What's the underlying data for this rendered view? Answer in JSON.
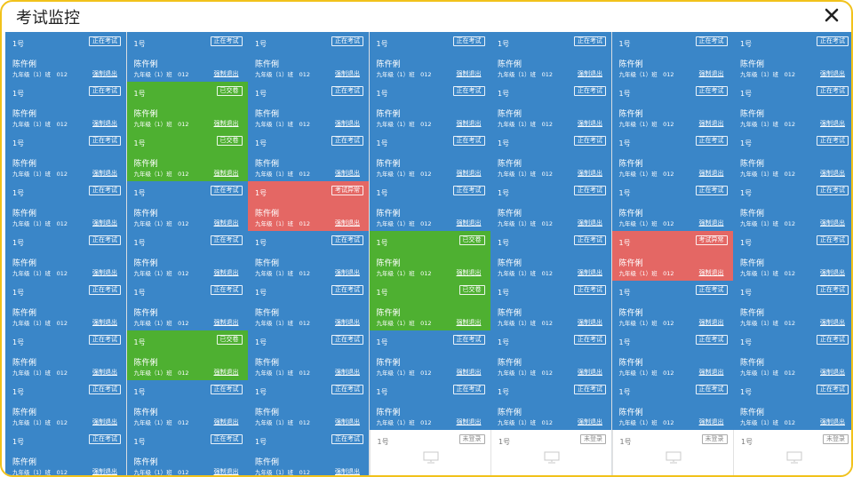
{
  "window": {
    "title": "考试监控"
  },
  "colors": {
    "online": "#3a86c8",
    "submitted": "#4eb031",
    "abnormal": "#e46764",
    "not_logged_in": "#ffffff",
    "frame": "#f1c21b"
  },
  "icons": {
    "close": "close-icon",
    "offline_monitor": "monitor-icon"
  },
  "force_exit_label": "强制退出",
  "status_labels": {
    "online": "正在考试",
    "submitted": "已交卷",
    "abnormal": "考试异常",
    "not_logged_in": "未登录"
  },
  "students": [
    {
      "seat": "1号",
      "name": "陈仵俐",
      "class_info": "九年级（1）班　012",
      "status": "online",
      "status_label": "正在考试"
    },
    {
      "seat": "1号",
      "name": "陈仵俐",
      "class_info": "九年级（1）班　012",
      "status": "online",
      "status_label": "正在考试"
    },
    {
      "seat": "1号",
      "name": "陈仵俐",
      "class_info": "九年级（1）班　012",
      "status": "online",
      "status_label": "正在考试"
    },
    {
      "seat": "1号",
      "name": "陈仵俐",
      "class_info": "九年级（1）班　012",
      "status": "online",
      "status_label": "正在考试"
    },
    {
      "seat": "1号",
      "name": "陈仵俐",
      "class_info": "九年级（1）班　012",
      "status": "online",
      "status_label": "正在考试"
    },
    {
      "seat": "1号",
      "name": "陈仵俐",
      "class_info": "九年级（1）班　012",
      "status": "online",
      "status_label": "正在考试"
    },
    {
      "seat": "1号",
      "name": "陈仵俐",
      "class_info": "九年级（1）班　012",
      "status": "online",
      "status_label": "正在考试"
    },
    {
      "seat": "1号",
      "name": "陈仵俐",
      "class_info": "九年级（1）班　012",
      "status": "online",
      "status_label": "正在考试"
    },
    {
      "seat": "1号",
      "name": "陈仵俐",
      "class_info": "九年级（1）班　012",
      "status": "submitted",
      "status_label": "已交卷"
    },
    {
      "seat": "1号",
      "name": "陈仵俐",
      "class_info": "九年级（1）班　012",
      "status": "online",
      "status_label": "正在考试"
    },
    {
      "seat": "1号",
      "name": "陈仵俐",
      "class_info": "九年级（1）班　012",
      "status": "online",
      "status_label": "正在考试"
    },
    {
      "seat": "1号",
      "name": "陈仵俐",
      "class_info": "九年级（1）班　012",
      "status": "online",
      "status_label": "正在考试"
    },
    {
      "seat": "1号",
      "name": "陈仵俐",
      "class_info": "九年级（1）班　012",
      "status": "online",
      "status_label": "正在考试"
    },
    {
      "seat": "1号",
      "name": "陈仵俐",
      "class_info": "九年级（1）班　012",
      "status": "online",
      "status_label": "正在考试"
    },
    {
      "seat": "1号",
      "name": "陈仵俐",
      "class_info": "九年级（1）班　012",
      "status": "online",
      "status_label": "正在考试"
    },
    {
      "seat": "1号",
      "name": "陈仵俐",
      "class_info": "九年级（1）班　012",
      "status": "submitted",
      "status_label": "已交卷"
    },
    {
      "seat": "1号",
      "name": "陈仵俐",
      "class_info": "九年级（1）班　012",
      "status": "online",
      "status_label": "正在考试"
    },
    {
      "seat": "1号",
      "name": "陈仵俐",
      "class_info": "九年级（1）班　012",
      "status": "online",
      "status_label": "正在考试"
    },
    {
      "seat": "1号",
      "name": "陈仵俐",
      "class_info": "九年级（1）班　012",
      "status": "online",
      "status_label": "正在考试"
    },
    {
      "seat": "1号",
      "name": "陈仵俐",
      "class_info": "九年级（1）班　012",
      "status": "online",
      "status_label": "正在考试"
    },
    {
      "seat": "1号",
      "name": "陈仵俐",
      "class_info": "九年级（1）班　012",
      "status": "online",
      "status_label": "正在考试"
    },
    {
      "seat": "1号",
      "name": "陈仵俐",
      "class_info": "九年级（1）班　012",
      "status": "online",
      "status_label": "正在考试"
    },
    {
      "seat": "1号",
      "name": "陈仵俐",
      "class_info": "九年级（1）班　012",
      "status": "online",
      "status_label": "正在考试"
    },
    {
      "seat": "1号",
      "name": "陈仵俐",
      "class_info": "九年级（1）班　012",
      "status": "abnormal",
      "status_label": "考试异常"
    },
    {
      "seat": "1号",
      "name": "陈仵俐",
      "class_info": "九年级（1）班　012",
      "status": "online",
      "status_label": "正在考试"
    },
    {
      "seat": "1号",
      "name": "陈仵俐",
      "class_info": "九年级（1）班　012",
      "status": "online",
      "status_label": "正在考试"
    },
    {
      "seat": "1号",
      "name": "陈仵俐",
      "class_info": "九年级（1）班　012",
      "status": "online",
      "status_label": "正在考试"
    },
    {
      "seat": "1号",
      "name": "陈仵俐",
      "class_info": "九年级（1）班　012",
      "status": "online",
      "status_label": "正在考试"
    },
    {
      "seat": "1号",
      "name": "陈仵俐",
      "class_info": "九年级（1）班　012",
      "status": "online",
      "status_label": "正在考试"
    },
    {
      "seat": "1号",
      "name": "陈仵俐",
      "class_info": "九年级（1）班　012",
      "status": "online",
      "status_label": "正在考试"
    },
    {
      "seat": "1号",
      "name": "陈仵俐",
      "class_info": "九年级（1）班　012",
      "status": "online",
      "status_label": "正在考试"
    },
    {
      "seat": "1号",
      "name": "陈仵俐",
      "class_info": "九年级（1）班　012",
      "status": "submitted",
      "status_label": "已交卷"
    },
    {
      "seat": "1号",
      "name": "陈仵俐",
      "class_info": "九年级（1）班　012",
      "status": "online",
      "status_label": "正在考试"
    },
    {
      "seat": "1号",
      "name": "陈仵俐",
      "class_info": "九年级（1）班　012",
      "status": "abnormal",
      "status_label": "考试异常"
    },
    {
      "seat": "1号",
      "name": "陈仵俐",
      "class_info": "九年级（1）班　012",
      "status": "online",
      "status_label": "正在考试"
    },
    {
      "seat": "1号",
      "name": "陈仵俐",
      "class_info": "九年级（1）班　012",
      "status": "online",
      "status_label": "正在考试"
    },
    {
      "seat": "1号",
      "name": "陈仵俐",
      "class_info": "九年级（1）班　012",
      "status": "online",
      "status_label": "正在考试"
    },
    {
      "seat": "1号",
      "name": "陈仵俐",
      "class_info": "九年级（1）班　012",
      "status": "online",
      "status_label": "正在考试"
    },
    {
      "seat": "1号",
      "name": "陈仵俐",
      "class_info": "九年级（1）班　012",
      "status": "submitted",
      "status_label": "已交卷"
    },
    {
      "seat": "1号",
      "name": "陈仵俐",
      "class_info": "九年级（1）班　012",
      "status": "online",
      "status_label": "正在考试"
    },
    {
      "seat": "1号",
      "name": "陈仵俐",
      "class_info": "九年级（1）班　012",
      "status": "online",
      "status_label": "正在考试"
    },
    {
      "seat": "1号",
      "name": "陈仵俐",
      "class_info": "九年级（1）班　012",
      "status": "online",
      "status_label": "正在考试"
    },
    {
      "seat": "1号",
      "name": "陈仵俐",
      "class_info": "九年级（1）班　012",
      "status": "online",
      "status_label": "正在考试"
    },
    {
      "seat": "1号",
      "name": "陈仵俐",
      "class_info": "九年级（1）班　012",
      "status": "submitted",
      "status_label": "已交卷"
    },
    {
      "seat": "1号",
      "name": "陈仵俐",
      "class_info": "九年级（1）班　012",
      "status": "online",
      "status_label": "正在考试"
    },
    {
      "seat": "1号",
      "name": "陈仵俐",
      "class_info": "九年级（1）班　012",
      "status": "online",
      "status_label": "正在考试"
    },
    {
      "seat": "1号",
      "name": "陈仵俐",
      "class_info": "九年级（1）班　012",
      "status": "online",
      "status_label": "正在考试"
    },
    {
      "seat": "1号",
      "name": "陈仵俐",
      "class_info": "九年级（1）班　012",
      "status": "online",
      "status_label": "正在考试"
    },
    {
      "seat": "1号",
      "name": "陈仵俐",
      "class_info": "九年级（1）班　012",
      "status": "online",
      "status_label": "正在考试"
    },
    {
      "seat": "1号",
      "name": "陈仵俐",
      "class_info": "九年级（1）班　012",
      "status": "online",
      "status_label": "正在考试"
    },
    {
      "seat": "1号",
      "name": "陈仵俐",
      "class_info": "九年级（1）班　012",
      "status": "online",
      "status_label": "正在考试"
    },
    {
      "seat": "1号",
      "name": "陈仵俐",
      "class_info": "九年级（1）班　012",
      "status": "online",
      "status_label": "正在考试"
    },
    {
      "seat": "1号",
      "name": "陈仵俐",
      "class_info": "九年级（1）班　012",
      "status": "online",
      "status_label": "正在考试"
    },
    {
      "seat": "1号",
      "name": "陈仵俐",
      "class_info": "九年级（1）班　012",
      "status": "online",
      "status_label": "正在考试"
    },
    {
      "seat": "1号",
      "name": "陈仵俐",
      "class_info": "九年级（1）班　012",
      "status": "online",
      "status_label": "正在考试"
    },
    {
      "seat": "1号",
      "name": "陈仵俐",
      "class_info": "九年级（1）班　012",
      "status": "online",
      "status_label": "正在考试"
    },
    {
      "seat": "1号",
      "name": "陈仵俐",
      "class_info": "九年级（1）班　012",
      "status": "online",
      "status_label": "正在考试"
    },
    {
      "seat": "1号",
      "name": "陈仵俐",
      "class_info": "九年级（1）班　012",
      "status": "online",
      "status_label": "正在考试"
    },
    {
      "seat": "1号",
      "name": "陈仵俐",
      "class_info": "九年级（1）班　012",
      "status": "online",
      "status_label": "正在考试"
    },
    {
      "seat": "1号",
      "name": "",
      "class_info": "",
      "status": "not_logged_in",
      "status_label": "未登录"
    },
    {
      "seat": "1号",
      "name": "",
      "class_info": "",
      "status": "not_logged_in",
      "status_label": "未登录"
    },
    {
      "seat": "1号",
      "name": "",
      "class_info": "",
      "status": "not_logged_in",
      "status_label": "未登录"
    },
    {
      "seat": "1号",
      "name": "",
      "class_info": "",
      "status": "not_logged_in",
      "status_label": "未登录"
    }
  ]
}
